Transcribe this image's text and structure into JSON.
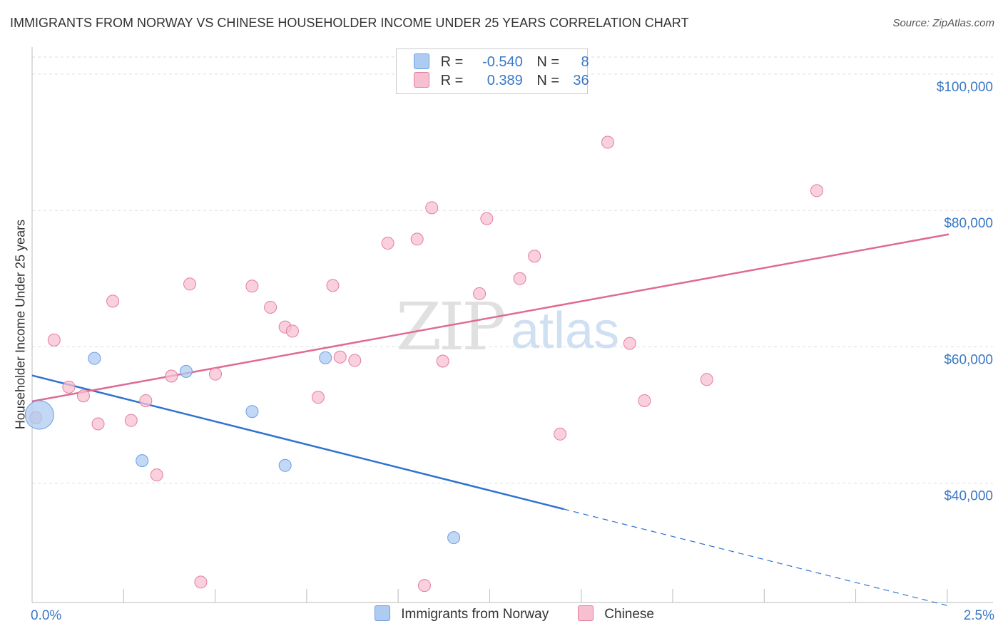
{
  "header": {
    "title": "IMMIGRANTS FROM NORWAY VS CHINESE HOUSEHOLDER INCOME UNDER 25 YEARS CORRELATION CHART",
    "source": "Source: ZipAtlas.com"
  },
  "watermark": {
    "zip": "ZIP",
    "atlas": "atlas"
  },
  "legend": {
    "rows": [
      {
        "r_label": "R =",
        "r_value": "-0.540",
        "n_label": "N =",
        "n_value": "8",
        "color": "#aecbf2"
      },
      {
        "r_label": "R =",
        "r_value": "0.389",
        "n_label": "N =",
        "n_value": "36",
        "color": "#f7c0d0"
      }
    ]
  },
  "bottom_legend": {
    "items": [
      {
        "label": "Immigrants from Norway",
        "color": "#aecbf2"
      },
      {
        "label": "Chinese",
        "color": "#f7c0d0"
      }
    ]
  },
  "chart_data": {
    "type": "scatter",
    "title": "IMMIGRANTS FROM NORWAY VS CHINESE HOUSEHOLDER INCOME UNDER 25 YEARS CORRELATION CHART",
    "xlabel": "",
    "ylabel": "Householder Income Under 25 years",
    "xlim": [
      0,
      2.5
    ],
    "ylim": [
      22500,
      102500
    ],
    "x_tick_labels": [
      "0.0%",
      "2.5%"
    ],
    "y_ticks": [
      40000,
      60000,
      80000,
      100000
    ],
    "y_tick_labels": [
      "$40,000",
      "$60,000",
      "$80,000",
      "$100,000"
    ],
    "grid": true,
    "series": [
      {
        "name": "Immigrants from Norway",
        "color": "#6a9fe0",
        "fill": "#aecbf2",
        "points": [
          {
            "x": 0.02,
            "y": 50000,
            "big": true
          },
          {
            "x": 0.17,
            "y": 58300
          },
          {
            "x": 0.3,
            "y": 43300
          },
          {
            "x": 0.42,
            "y": 56400
          },
          {
            "x": 0.6,
            "y": 50500
          },
          {
            "x": 0.69,
            "y": 42600
          },
          {
            "x": 0.8,
            "y": 58400
          },
          {
            "x": 1.15,
            "y": 32000
          }
        ],
        "trend": {
          "x0": 0.0,
          "y0": 55800,
          "x1": 1.45,
          "y1": 36200,
          "dash_to_x": 2.5,
          "dash_to_y": 22000
        }
      },
      {
        "name": "Chinese",
        "color": "#e27da0",
        "fill": "#f7c0d0",
        "points": [
          {
            "x": 0.01,
            "y": 49600
          },
          {
            "x": 0.06,
            "y": 61000
          },
          {
            "x": 0.1,
            "y": 54100
          },
          {
            "x": 0.14,
            "y": 52800
          },
          {
            "x": 0.18,
            "y": 48700
          },
          {
            "x": 0.22,
            "y": 66700
          },
          {
            "x": 0.27,
            "y": 49200
          },
          {
            "x": 0.31,
            "y": 52100
          },
          {
            "x": 0.34,
            "y": 41200
          },
          {
            "x": 0.38,
            "y": 55700
          },
          {
            "x": 0.43,
            "y": 69200
          },
          {
            "x": 0.46,
            "y": 25500
          },
          {
            "x": 0.5,
            "y": 56000
          },
          {
            "x": 0.6,
            "y": 68900
          },
          {
            "x": 0.65,
            "y": 65800
          },
          {
            "x": 0.69,
            "y": 62900
          },
          {
            "x": 0.71,
            "y": 62300
          },
          {
            "x": 0.78,
            "y": 52600
          },
          {
            "x": 0.82,
            "y": 69000
          },
          {
            "x": 0.84,
            "y": 58500
          },
          {
            "x": 0.88,
            "y": 58000
          },
          {
            "x": 0.97,
            "y": 75200
          },
          {
            "x": 1.05,
            "y": 75800
          },
          {
            "x": 1.07,
            "y": 25000
          },
          {
            "x": 1.09,
            "y": 80400
          },
          {
            "x": 1.12,
            "y": 57900
          },
          {
            "x": 1.22,
            "y": 67800
          },
          {
            "x": 1.24,
            "y": 78800
          },
          {
            "x": 1.33,
            "y": 70000
          },
          {
            "x": 1.37,
            "y": 73300
          },
          {
            "x": 1.44,
            "y": 47200
          },
          {
            "x": 1.57,
            "y": 90000
          },
          {
            "x": 1.63,
            "y": 60500
          },
          {
            "x": 1.67,
            "y": 52100
          },
          {
            "x": 1.84,
            "y": 55200
          },
          {
            "x": 2.14,
            "y": 82900
          }
        ],
        "trend": {
          "x0": 0.0,
          "y0": 52000,
          "x1": 2.5,
          "y1": 76500
        }
      }
    ]
  }
}
